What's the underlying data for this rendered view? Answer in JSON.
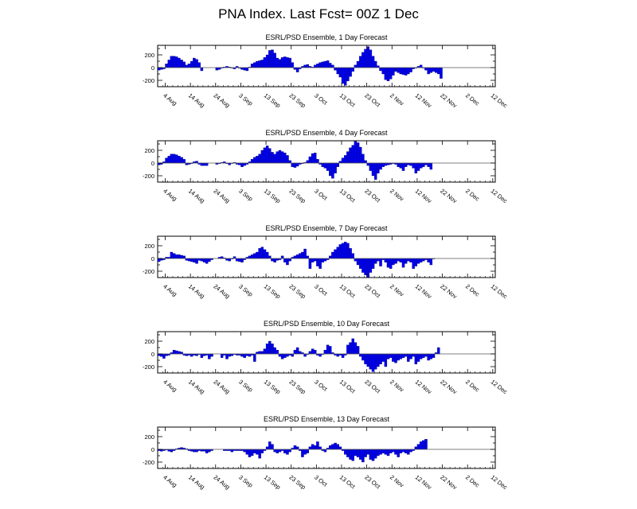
{
  "title": "PNA Index. Last Fcst= 00Z 1 Dec",
  "colors": {
    "bar": "#0000ee",
    "bar_edge": "#000055",
    "axis": "#000000"
  },
  "chart_data": [
    {
      "type": "bar",
      "title": "ESRL/PSD Ensemble, 1 Day Forecast",
      "x_start": "2013-08-01",
      "x_tick_labels": [
        "4 Aug",
        "14 Aug",
        "24 Aug",
        "3 Sep",
        "13 Sep",
        "23 Sep",
        "3 Oct",
        "13 Oct",
        "23 Oct",
        "2 Nov",
        "12 Nov",
        "22 Nov",
        "2 Dec",
        "12 Dec"
      ],
      "y_tick_labels": [
        "200",
        "0",
        "-200"
      ],
      "ylim": [
        -300,
        350
      ],
      "values": [
        -40,
        -30,
        -20,
        60,
        120,
        180,
        180,
        170,
        150,
        120,
        90,
        40,
        60,
        100,
        150,
        130,
        80,
        -50,
        null,
        null,
        null,
        null,
        null,
        -40,
        -30,
        -10,
        10,
        20,
        10,
        0,
        -20,
        20,
        -10,
        -30,
        -40,
        -50,
        10,
        60,
        80,
        100,
        110,
        120,
        160,
        200,
        270,
        280,
        230,
        150,
        130,
        160,
        170,
        160,
        150,
        80,
        -30,
        -70,
        -20,
        20,
        40,
        50,
        20,
        10,
        40,
        60,
        80,
        90,
        100,
        110,
        70,
        40,
        -40,
        -100,
        -150,
        -250,
        -280,
        -210,
        -140,
        -60,
        40,
        100,
        180,
        240,
        290,
        330,
        280,
        180,
        100,
        30,
        -50,
        -100,
        -190,
        -210,
        -180,
        -120,
        -60,
        -80,
        -100,
        -110,
        -120,
        -100,
        -70,
        -20,
        0,
        20,
        40,
        0,
        -40,
        -100,
        -80,
        -60,
        -80,
        -100,
        -170,
        null,
        null,
        null,
        null,
        null,
        null,
        null,
        null,
        null,
        null,
        null,
        null
      ]
    },
    {
      "type": "bar",
      "title": "ESRL/PSD Ensemble, 4 Day Forecast",
      "x_start": "2013-08-01",
      "x_tick_labels": [
        "4 Aug",
        "14 Aug",
        "24 Aug",
        "3 Sep",
        "13 Sep",
        "23 Sep",
        "3 Oct",
        "13 Oct",
        "23 Oct",
        "2 Nov",
        "12 Nov",
        "22 Nov",
        "2 Dec",
        "12 Dec"
      ],
      "y_tick_labels": [
        "200",
        "0",
        "-200"
      ],
      "ylim": [
        -300,
        350
      ],
      "values": [
        -30,
        -20,
        20,
        80,
        110,
        140,
        140,
        130,
        110,
        90,
        60,
        -30,
        -20,
        -10,
        20,
        30,
        -20,
        -40,
        -40,
        -40,
        null,
        null,
        null,
        -20,
        -10,
        10,
        20,
        -10,
        -30,
        0,
        10,
        -20,
        -30,
        -60,
        -40,
        -20,
        20,
        60,
        90,
        110,
        140,
        200,
        240,
        270,
        230,
        170,
        140,
        180,
        200,
        180,
        160,
        120,
        40,
        -60,
        -70,
        -50,
        -20,
        -10,
        10,
        40,
        100,
        150,
        160,
        60,
        -20,
        -60,
        -80,
        -120,
        -200,
        -240,
        -160,
        -60,
        30,
        80,
        120,
        180,
        240,
        280,
        340,
        320,
        250,
        140,
        40,
        -40,
        -120,
        -200,
        -260,
        -160,
        -100,
        -60,
        -40,
        -30,
        -20,
        -10,
        -20,
        -60,
        -80,
        -120,
        -60,
        -30,
        -40,
        -80,
        -160,
        -120,
        -80,
        -60,
        -30,
        -60,
        -100,
        null,
        null,
        null,
        null,
        null,
        null,
        null,
        null,
        null,
        null,
        null,
        null
      ]
    },
    {
      "type": "bar",
      "title": "ESRL/PSD Ensemble, 7 Day Forecast",
      "x_start": "2013-08-01",
      "x_tick_labels": [
        "4 Aug",
        "14 Aug",
        "24 Aug",
        "3 Sep",
        "13 Sep",
        "23 Sep",
        "3 Oct",
        "13 Oct",
        "23 Oct",
        "2 Nov",
        "12 Nov",
        "22 Nov",
        "2 Dec",
        "12 Dec"
      ],
      "y_tick_labels": [
        "200",
        "0",
        "-200"
      ],
      "ylim": [
        -300,
        350
      ],
      "values": [
        -50,
        -30,
        -20,
        20,
        20,
        100,
        80,
        60,
        60,
        50,
        40,
        -30,
        -40,
        -50,
        -60,
        -80,
        -30,
        -40,
        -60,
        -80,
        -50,
        -20,
        null,
        null,
        20,
        30,
        10,
        -30,
        -40,
        -10,
        30,
        -40,
        -50,
        -60,
        -20,
        20,
        40,
        60,
        80,
        100,
        160,
        180,
        140,
        100,
        40,
        -40,
        -60,
        -30,
        -20,
        40,
        -60,
        -100,
        -40,
        20,
        40,
        60,
        80,
        100,
        150,
        40,
        -160,
        -60,
        -40,
        -120,
        -160,
        -60,
        -40,
        -20,
        40,
        100,
        140,
        180,
        220,
        240,
        260,
        240,
        160,
        80,
        -40,
        -100,
        -160,
        -220,
        -260,
        -300,
        -220,
        -160,
        -80,
        -40,
        -120,
        -20,
        -60,
        -140,
        -160,
        -100,
        -80,
        -40,
        -60,
        -140,
        -80,
        -40,
        -60,
        -160,
        -120,
        -80,
        -60,
        -40,
        -20,
        -60,
        -100,
        0,
        null,
        null,
        null,
        null,
        null,
        null,
        null,
        null,
        null,
        null,
        null,
        null
      ]
    },
    {
      "type": "bar",
      "title": "ESRL/PSD Ensemble, 10 Day Forecast",
      "x_start": "2013-08-01",
      "x_tick_labels": [
        "4 Aug",
        "14 Aug",
        "24 Aug",
        "3 Sep",
        "13 Sep",
        "23 Sep",
        "3 Oct",
        "13 Oct",
        "23 Oct",
        "2 Nov",
        "12 Nov",
        "22 Nov",
        "2 Dec",
        "12 Dec"
      ],
      "y_tick_labels": [
        "200",
        "0",
        "-200"
      ],
      "ylim": [
        -300,
        350
      ],
      "values": [
        -30,
        -40,
        -70,
        -30,
        -20,
        20,
        60,
        50,
        40,
        30,
        -20,
        -30,
        -20,
        -40,
        -20,
        -30,
        -10,
        -60,
        -30,
        -20,
        -80,
        -40,
        null,
        null,
        null,
        -60,
        -20,
        -80,
        -40,
        -30,
        -10,
        -20,
        -20,
        -40,
        -60,
        -30,
        -40,
        -20,
        -120,
        30,
        40,
        40,
        80,
        160,
        200,
        160,
        100,
        60,
        -40,
        -80,
        -60,
        -40,
        -20,
        -40,
        60,
        100,
        40,
        20,
        -40,
        -10,
        40,
        80,
        60,
        -20,
        -40,
        -10,
        60,
        140,
        120,
        20,
        -20,
        -40,
        -20,
        -60,
        -20,
        140,
        180,
        240,
        180,
        120,
        -40,
        -100,
        -160,
        -200,
        -240,
        -280,
        -240,
        -200,
        -160,
        -120,
        -200,
        -80,
        -60,
        -120,
        -140,
        -100,
        -80,
        -60,
        -40,
        -120,
        -80,
        -40,
        -160,
        -120,
        -80,
        -60,
        -40,
        -100,
        -80,
        -60,
        20,
        100,
        null,
        null,
        null,
        null,
        null,
        null,
        null,
        null,
        null
      ]
    },
    {
      "type": "bar",
      "title": "ESRL/PSD Ensemble, 13 Day Forecast",
      "x_start": "2013-08-01",
      "x_tick_labels": [
        "4 Aug",
        "14 Aug",
        "24 Aug",
        "3 Sep",
        "13 Sep",
        "23 Sep",
        "3 Oct",
        "13 Oct",
        "23 Oct",
        "2 Nov",
        "12 Nov",
        "22 Nov",
        "2 Dec",
        "12 Dec"
      ],
      "y_tick_labels": [
        "200",
        "0",
        "-200"
      ],
      "ylim": [
        -300,
        350
      ],
      "values": [
        -20,
        -30,
        -20,
        -10,
        -30,
        -40,
        -20,
        10,
        20,
        30,
        20,
        10,
        -20,
        -30,
        -40,
        -40,
        -20,
        -30,
        -30,
        -60,
        -40,
        -20,
        null,
        null,
        null,
        null,
        -20,
        -20,
        -20,
        -40,
        -20,
        -20,
        -20,
        -20,
        -40,
        -80,
        -120,
        -100,
        -60,
        -80,
        -140,
        -60,
        -20,
        40,
        120,
        80,
        -40,
        -60,
        -40,
        -20,
        -60,
        -80,
        -40,
        20,
        60,
        40,
        -20,
        -120,
        -80,
        -60,
        40,
        80,
        60,
        120,
        40,
        -20,
        -40,
        20,
        60,
        80,
        100,
        80,
        40,
        -20,
        -80,
        -120,
        -160,
        -180,
        -100,
        -120,
        -160,
        -200,
        -120,
        -80,
        -160,
        -180,
        -140,
        -100,
        -80,
        -60,
        -80,
        -100,
        -60,
        -40,
        -80,
        -120,
        -60,
        -40,
        -60,
        -80,
        -40,
        -20,
        40,
        80,
        120,
        140,
        160,
        null,
        null,
        null,
        null,
        null,
        null,
        null,
        null,
        null,
        null,
        null,
        null,
        null
      ]
    }
  ]
}
